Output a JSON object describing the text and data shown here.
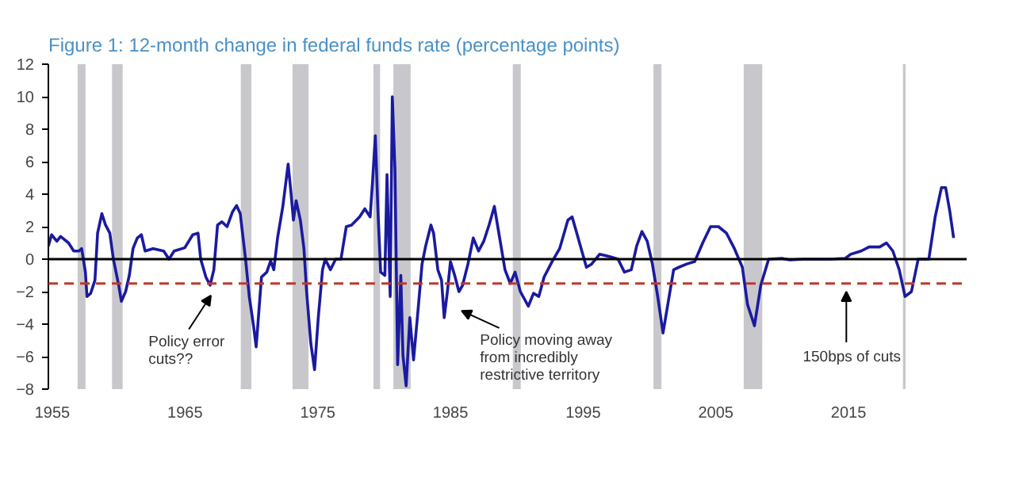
{
  "chart_data": {
    "type": "line",
    "title": "Figure 1: 12-month change in federal funds rate (percentage points)",
    "xlim": [
      1954.7,
      2023.9
    ],
    "ylim": [
      -8,
      12
    ],
    "xticks": [
      1955,
      1965,
      1975,
      1985,
      1995,
      2005,
      2015
    ],
    "yticks": [
      -8,
      -6,
      -4,
      -2,
      0,
      2,
      4,
      6,
      8,
      10,
      12
    ],
    "grid": false,
    "marker": "none",
    "line_style": "solid",
    "series": [
      {
        "color": "#1a1aa0",
        "x": [
          1954.7,
          1954.94,
          1955.34,
          1955.62,
          1956.22,
          1956.61,
          1957.01,
          1957.21,
          1957.49,
          1957.61,
          1957.89,
          1958.21,
          1958.41,
          1958.73,
          1959.01,
          1959.33,
          1959.6,
          1960.0,
          1960.2,
          1960.52,
          1960.8,
          1961.08,
          1961.4,
          1961.71,
          1961.99,
          1962.59,
          1963.39,
          1963.79,
          1964.18,
          1964.98,
          1965.58,
          1965.98,
          1966.18,
          1966.57,
          1966.89,
          1967.17,
          1967.45,
          1967.77,
          1968.17,
          1968.57,
          1968.88,
          1969.16,
          1969.56,
          1969.84,
          1970.16,
          1970.36,
          1970.76,
          1971.16,
          1971.45,
          1971.69,
          1971.97,
          1972.37,
          1972.77,
          1972.97,
          1973.17,
          1973.37,
          1973.69,
          1973.96,
          1974.16,
          1974.48,
          1974.76,
          1975.04,
          1975.36,
          1975.56,
          1975.96,
          1976.35,
          1976.75,
          1977.15,
          1977.55,
          1978.15,
          1978.55,
          1978.95,
          1979.14,
          1979.34,
          1979.54,
          1979.74,
          1980.06,
          1980.22,
          1980.46,
          1980.62,
          1980.82,
          1981.02,
          1981.26,
          1981.42,
          1981.66,
          1981.94,
          1982.22,
          1982.54,
          1982.86,
          1983.13,
          1983.53,
          1983.73,
          1984.05,
          1984.33,
          1984.53,
          1984.77,
          1985.0,
          1985.32,
          1985.64,
          1985.92,
          1986.32,
          1986.72,
          1987.12,
          1987.51,
          1987.91,
          1988.31,
          1988.71,
          1989.11,
          1989.51,
          1989.87,
          1990.27,
          1990.87,
          1991.26,
          1991.66,
          1992.06,
          1992.66,
          1993.23,
          1993.85,
          1994.17,
          1994.45,
          1994.85,
          1995.25,
          1995.64,
          1996.24,
          1997.04,
          1997.63,
          1998.11,
          1998.63,
          1999.03,
          1999.43,
          1999.83,
          2000.22,
          2000.62,
          2001.02,
          2001.42,
          2001.82,
          2002.21,
          2002.81,
          2003.41,
          2004.01,
          2004.6,
          2005.2,
          2005.8,
          2006.4,
          2007.0,
          2007.39,
          2007.91,
          2008.39,
          2008.98,
          2009.98,
          2010.58,
          2011.57,
          2013.56,
          2014.76,
          2015.16,
          2015.95,
          2016.55,
          2017.35,
          2017.86,
          2018.34,
          2018.82,
          2019.26,
          2019.74,
          2020.25,
          2021.05,
          2021.53,
          2022.0,
          2022.32,
          2022.64,
          2022.92
        ],
        "values": [
          0.8,
          1.5,
          1.1,
          1.4,
          1.0,
          0.5,
          0.5,
          0.65,
          -0.8,
          -2.3,
          -2.1,
          -1.3,
          1.6,
          2.8,
          2.1,
          1.6,
          0,
          -1.6,
          -2.6,
          -2.0,
          -1.0,
          0.65,
          1.3,
          1.5,
          0.5,
          0.65,
          0.5,
          0,
          0.5,
          0.7,
          1.5,
          1.6,
          0,
          -1.1,
          -1.6,
          -0.65,
          2.1,
          2.3,
          2.0,
          2.9,
          3.3,
          2.8,
          0,
          -2.3,
          -4.1,
          -5.4,
          -1.1,
          -0.8,
          -0.1,
          -0.65,
          1.3,
          3.25,
          5.85,
          4.2,
          2.4,
          3.6,
          2.4,
          0.65,
          -2.0,
          -5.2,
          -6.8,
          -3.6,
          -0.65,
          0,
          -0.65,
          0,
          0,
          2.0,
          2.1,
          2.6,
          3.1,
          2.6,
          4.9,
          7.6,
          2.9,
          -0.8,
          -1.0,
          5.2,
          -2.3,
          10.0,
          5.5,
          -6.5,
          -1.0,
          -5.9,
          -7.8,
          -3.6,
          -6.2,
          -3.3,
          -0.3,
          0.8,
          2.1,
          1.6,
          -0.65,
          -1.3,
          -3.6,
          -2.0,
          -0.15,
          -1.0,
          -2.0,
          -1.6,
          -0.3,
          1.3,
          0.5,
          1.1,
          2.1,
          3.25,
          1.3,
          -0.65,
          -1.5,
          -0.8,
          -2.0,
          -2.9,
          -2.1,
          -2.3,
          -1.1,
          -0.15,
          0.65,
          2.4,
          2.6,
          1.8,
          0.65,
          -0.5,
          -0.3,
          0.3,
          0.15,
          0,
          -0.8,
          -0.65,
          0.8,
          1.7,
          1.1,
          -0.3,
          -2.3,
          -4.55,
          -2.6,
          -0.65,
          -0.5,
          -0.3,
          -0.15,
          1.0,
          2.0,
          2.0,
          1.6,
          0.65,
          -0.5,
          -2.8,
          -4.1,
          -1.6,
          0,
          0.05,
          -0.05,
          0,
          0,
          0.05,
          0.3,
          0.5,
          0.75,
          0.75,
          1.0,
          0.5,
          -0.65,
          -2.3,
          -2.0,
          0,
          0,
          2.6,
          4.4,
          4.4,
          2.9,
          1.3
        ]
      }
    ],
    "ref_lines": [
      {
        "axis": "y",
        "value": 0,
        "color": "#000000",
        "line_style": "solid"
      },
      {
        "axis": "y",
        "value": -1.5,
        "color": "#c0392b",
        "line_style": "dashed"
      }
    ],
    "bands": [
      {
        "axis": "x",
        "from": 1956.9,
        "to": 1957.5,
        "color": "#c8c8cc"
      },
      {
        "axis": "x",
        "from": 1959.5,
        "to": 1960.3,
        "color": "#c8c8cc"
      },
      {
        "axis": "x",
        "from": 1969.2,
        "to": 1970.0,
        "color": "#c8c8cc"
      },
      {
        "axis": "x",
        "from": 1973.1,
        "to": 1974.3,
        "color": "#c8c8cc"
      },
      {
        "axis": "x",
        "from": 1979.2,
        "to": 1979.7,
        "color": "#c8c8cc"
      },
      {
        "axis": "x",
        "from": 1980.7,
        "to": 1982.0,
        "color": "#c8c8cc"
      },
      {
        "axis": "x",
        "from": 1989.7,
        "to": 1990.3,
        "color": "#c8c8cc"
      },
      {
        "axis": "x",
        "from": 2000.3,
        "to": 2000.9,
        "color": "#c8c8cc"
      },
      {
        "axis": "x",
        "from": 2007.1,
        "to": 2008.5,
        "color": "#c8c8cc"
      },
      {
        "axis": "x",
        "from": 2019.1,
        "to": 2019.3,
        "color": "#c8c8cc"
      }
    ],
    "annotations": [
      "Policy error\ncuts??",
      "Policy moving away\nfrom incredibly\nrestrictive territory",
      "150bps of cuts"
    ]
  }
}
